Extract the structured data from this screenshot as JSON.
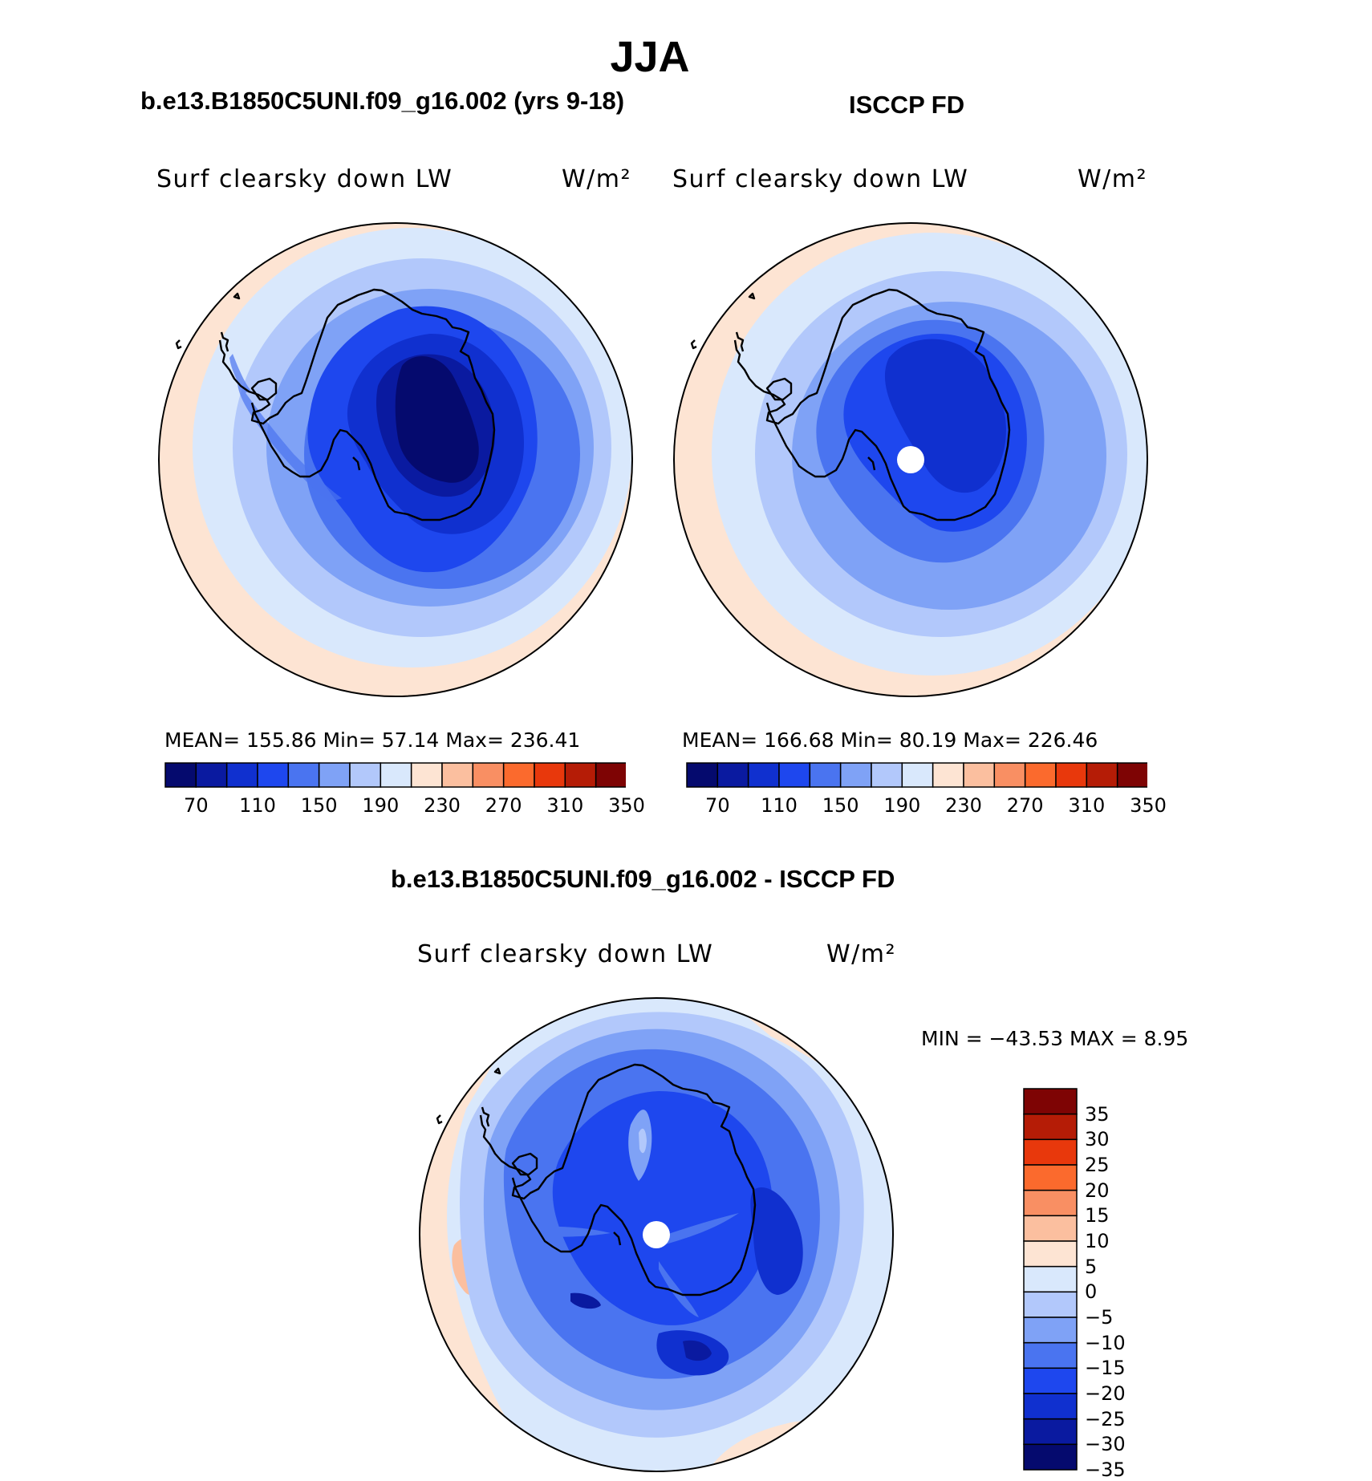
{
  "title": "JJA",
  "panel_left": {
    "title": "b.e13.B1850C5UNI.f09_g16.002 (yrs 9-18)",
    "variable": "Surf clearsky down LW",
    "units": "W/m²",
    "stats": "MEAN= 155.86   Min=   57.14   Max= 236.41"
  },
  "panel_right": {
    "title": "ISCCP FD",
    "variable": "Surf clearsky down LW",
    "units": "W/m²",
    "stats": "MEAN= 166.68   Min=   80.19   Max= 226.46"
  },
  "panel_diff": {
    "title": "b.e13.B1850C5UNI.f09_g16.002 - ISCCP FD",
    "variable": "Surf clearsky down LW",
    "units": "W/m²",
    "stats": "MIN  =  −43.53  MAX  =     8.95"
  },
  "colors": {
    "abs_scale": [
      "#050a6e",
      "#0a1aa0",
      "#1030cf",
      "#1e47ee",
      "#4a74f0",
      "#7fa2f6",
      "#b2c8fb",
      "#d9e8fc",
      "#fde4d3",
      "#fbbf9f",
      "#f98f63",
      "#fb6a2d",
      "#e8380c",
      "#b51c06",
      "#7e0404"
    ],
    "diff_scale": [
      "#050a6e",
      "#0a1aa0",
      "#1030cf",
      "#1e47ee",
      "#4a74f0",
      "#7fa2f6",
      "#b2c8fb",
      "#d9e8fc",
      "#fde4d3",
      "#fbbf9f",
      "#f98f63",
      "#fb6a2d",
      "#e8380c",
      "#b51c06",
      "#7e0404"
    ]
  },
  "chart_data": [
    {
      "type": "heatmap",
      "projection": "south polar stereographic",
      "title": "b.e13.B1850C5UNI.f09_g16.002 (yrs 9-18)",
      "variable": "Surf clearsky down LW",
      "units": "W/m2",
      "mean": 155.86,
      "min": 57.14,
      "max": 236.41,
      "contour_levels": [
        70,
        90,
        110,
        130,
        150,
        170,
        190,
        210,
        230,
        250,
        270,
        290,
        310,
        330,
        350
      ],
      "colorbar_tick_labels": [
        "70",
        "110",
        "150",
        "190",
        "230",
        "270",
        "310",
        "350"
      ]
    },
    {
      "type": "heatmap",
      "projection": "south polar stereographic",
      "title": "ISCCP FD",
      "variable": "Surf clearsky down LW",
      "units": "W/m2",
      "mean": 166.68,
      "min": 80.19,
      "max": 226.46,
      "contour_levels": [
        70,
        90,
        110,
        130,
        150,
        170,
        190,
        210,
        230,
        250,
        270,
        290,
        310,
        330,
        350
      ],
      "colorbar_tick_labels": [
        "70",
        "110",
        "150",
        "190",
        "230",
        "270",
        "310",
        "350"
      ]
    },
    {
      "type": "heatmap",
      "projection": "south polar stereographic",
      "title": "b.e13.B1850C5UNI.f09_g16.002 - ISCCP FD",
      "variable": "Surf clearsky down LW",
      "units": "W/m2",
      "min": -43.53,
      "max": 8.95,
      "contour_levels": [
        -35,
        -30,
        -25,
        -20,
        -15,
        -10,
        -5,
        0,
        5,
        10,
        15,
        20,
        25,
        30,
        35
      ],
      "colorbar_tick_labels": [
        "35",
        "30",
        "25",
        "20",
        "15",
        "10",
        "5",
        "0",
        "−5",
        "−10",
        "−15",
        "−20",
        "−25",
        "−30",
        "−35"
      ]
    }
  ]
}
